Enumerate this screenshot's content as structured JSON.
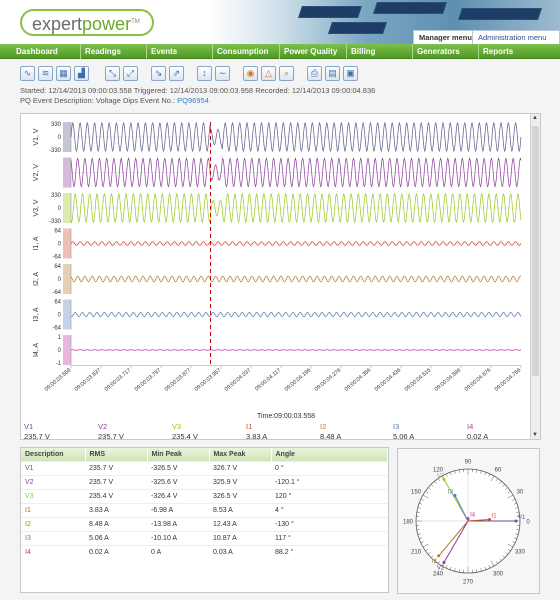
{
  "brand": {
    "name_a": "expert",
    "name_b": "power",
    "tm": "TM"
  },
  "header": {
    "manager_menu": "Manager menu",
    "admin_menu": "Administration menu"
  },
  "nav": [
    "Dashboard",
    "Readings",
    "Events",
    "Consumption",
    "Power Quality",
    "Billing",
    "Generators",
    "Reports"
  ],
  "toolbar": {
    "icons": [
      "waveform-icon",
      "rms-icon",
      "table-icon",
      "harmonics-icon",
      "zoom-icon",
      "zoom-fit-icon",
      "export-icon",
      "import-icon",
      "scale-icon",
      "sine-icon",
      "view-icon",
      "warning-icon",
      "search-icon",
      "print-preview-icon",
      "print-icon",
      "save-icon"
    ]
  },
  "info": {
    "line1": "Started: 12/14/2013 09:00:03.558   Triggered: 12/14/2013 09:00:03.958   Recorded: 12/14/2013 09:00:04.836",
    "line2": "PQ Event Description: Voltage Dips   Event No.:",
    "event_no": "PQ96954"
  },
  "colors": {
    "V1": "#5a5a8c",
    "V2": "#8a3a9a",
    "V3": "#9ac820",
    "I1": "#d24a2a",
    "I2": "#b8782a",
    "I3": "#5a7ab8",
    "I4": "#c030a0",
    "trigger": "#cc0000"
  },
  "chart_data": {
    "type": "line",
    "title": "",
    "xlabel": "Time:09:00:03.558",
    "x_ticks": [
      "09:00:03.558",
      "09:00:03.637",
      "09:00:03.717",
      "09:00:03.797",
      "09:00:03.877",
      "09:00:03.957",
      "09:00:04.037",
      "09:00:04.117",
      "09:00:04.196",
      "09:00:04.276",
      "09:00:04.356",
      "09:00:04.436",
      "09:00:04.516",
      "09:00:04.596",
      "09:00:04.676",
      "09:00:04.756"
    ],
    "trigger_time": "09:00:03.958",
    "series": [
      {
        "name": "V1",
        "unit": "V",
        "ylim": [
          -330,
          330
        ],
        "ticks": [
          "330",
          "0",
          "-330"
        ],
        "amplitude": 326,
        "cycles": 62
      },
      {
        "name": "V2",
        "unit": "V",
        "ylim": [
          -330,
          330
        ],
        "ticks": [
          "",
          "",
          ""
        ],
        "amplitude": 326,
        "cycles": 62
      },
      {
        "name": "V3",
        "unit": "V",
        "ylim": [
          -330,
          330
        ],
        "ticks": [
          "330",
          "0",
          "-330"
        ],
        "amplitude": 326,
        "cycles": 62
      },
      {
        "name": "I1",
        "unit": "A",
        "ylim": [
          -64,
          64
        ],
        "ticks": [
          "64",
          "0",
          "-64"
        ],
        "amplitude": 8.5,
        "cycles": 62
      },
      {
        "name": "I2",
        "unit": "A",
        "ylim": [
          -64,
          64
        ],
        "ticks": [
          "64",
          "0",
          "-64"
        ],
        "amplitude": 13,
        "cycles": 62
      },
      {
        "name": "I3",
        "unit": "A",
        "ylim": [
          -64,
          64
        ],
        "ticks": [
          "64",
          "0",
          "-64"
        ],
        "amplitude": 10,
        "cycles": 62
      },
      {
        "name": "I4",
        "unit": "A",
        "ylim": [
          -1,
          1
        ],
        "ticks": [
          "1",
          "0",
          "-1"
        ],
        "amplitude": 0.02,
        "cycles": 62
      }
    ]
  },
  "legend": [
    {
      "name": "V1",
      "value": "235.7 V"
    },
    {
      "name": "V2",
      "value": "235.7 V"
    },
    {
      "name": "V3",
      "value": "235.4 V"
    },
    {
      "name": "I1",
      "value": "3.83 A"
    },
    {
      "name": "I2",
      "value": "8.48 A"
    },
    {
      "name": "I3",
      "value": "5.06 A"
    },
    {
      "name": "I4",
      "value": "0.02 A"
    }
  ],
  "table": {
    "headers": [
      "Description",
      "RMS",
      "Min Peak",
      "Max Peak",
      "Angle"
    ],
    "rows": [
      [
        "V1",
        "235.7 V",
        "-326.5 V",
        "326.7 V",
        "0 °"
      ],
      [
        "V2",
        "235.7 V",
        "-325.6 V",
        "325.9 V",
        "-120.1 °"
      ],
      [
        "V3",
        "235.4 V",
        "-326.4 V",
        "326.5 V",
        "120 °"
      ],
      [
        "I1",
        "3.83 A",
        "-6.98 A",
        "8.53 A",
        "4 °"
      ],
      [
        "I2",
        "8.48 A",
        "-13.98 A",
        "12.43 A",
        "-130 °"
      ],
      [
        "I3",
        "5.06 A",
        "-10.10 A",
        "10.87 A",
        "117 °"
      ],
      [
        "I4",
        "0.02 A",
        "0 A",
        "0.03 A",
        "88.2 °"
      ]
    ]
  },
  "phasor": {
    "labels": [
      "0",
      "30",
      "60",
      "90",
      "120",
      "150",
      "180",
      "210",
      "240",
      "270",
      "300",
      "330"
    ],
    "vectors": [
      {
        "name": "V1",
        "angle": 0,
        "mag": 1.0
      },
      {
        "name": "V2",
        "angle": -120.1,
        "mag": 1.0
      },
      {
        "name": "V3",
        "angle": 120,
        "mag": 1.0
      },
      {
        "name": "I1",
        "angle": 4,
        "mag": 0.45
      },
      {
        "name": "I2",
        "angle": -130,
        "mag": 0.95
      },
      {
        "name": "I3",
        "angle": 117,
        "mag": 0.6
      },
      {
        "name": "I4",
        "angle": 88.2,
        "mag": 0.05
      }
    ]
  }
}
